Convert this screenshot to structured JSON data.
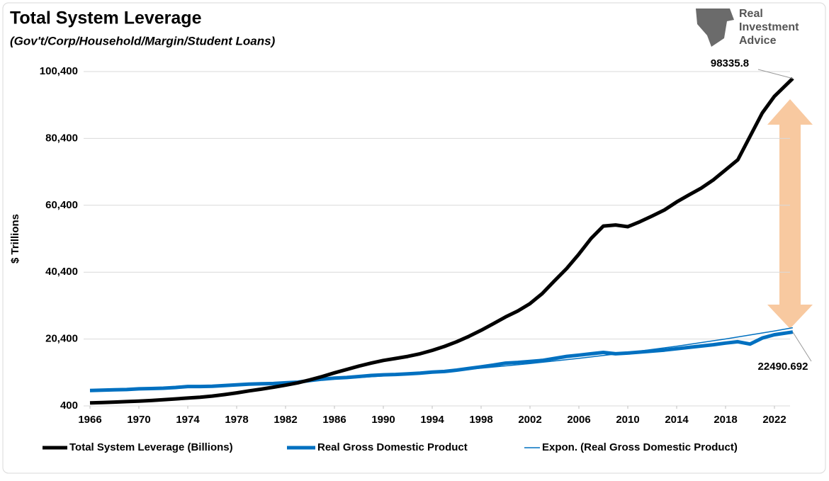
{
  "chart_data": {
    "type": "line",
    "title": "Total System Leverage",
    "subtitle": "(Gov't/Corp/Household/Margin/Student Loans)",
    "y_label": "$ Trillions",
    "logo": [
      "Real",
      "Investment",
      "Advice"
    ],
    "x": [
      1966,
      1967,
      1968,
      1969,
      1970,
      1971,
      1972,
      1973,
      1974,
      1975,
      1976,
      1977,
      1978,
      1979,
      1980,
      1981,
      1982,
      1983,
      1984,
      1985,
      1986,
      1987,
      1988,
      1989,
      1990,
      1991,
      1992,
      1993,
      1994,
      1995,
      1996,
      1997,
      1998,
      1999,
      2000,
      2001,
      2002,
      2003,
      2004,
      2005,
      2006,
      2007,
      2008,
      2009,
      2010,
      2011,
      2012,
      2013,
      2014,
      2015,
      2016,
      2017,
      2018,
      2019,
      2020,
      2021,
      2022,
      2023.5
    ],
    "series": [
      {
        "name": "Total System Leverage (Billions)",
        "color": "#000000",
        "width": 5,
        "values": [
          1300,
          1400,
          1550,
          1700,
          1850,
          2000,
          2250,
          2500,
          2750,
          3000,
          3350,
          3800,
          4300,
          4900,
          5400,
          6000,
          6600,
          7300,
          8200,
          9200,
          10300,
          11300,
          12300,
          13200,
          14000,
          14600,
          15200,
          16000,
          17000,
          18200,
          19600,
          21200,
          23000,
          25000,
          27000,
          28800,
          31000,
          34000,
          37800,
          41500,
          45800,
          50500,
          54200,
          54500,
          54000,
          55500,
          57200,
          59000,
          61400,
          63500,
          65500,
          68000,
          71000,
          74000,
          81000,
          88000,
          93000,
          98335.8
        ]
      },
      {
        "name": "Real Gross Domestic Product",
        "color": "#0070c0",
        "width": 5,
        "values": [
          5000,
          5100,
          5200,
          5300,
          5500,
          5600,
          5700,
          5900,
          6200,
          6200,
          6300,
          6500,
          6700,
          6900,
          7000,
          7100,
          7300,
          7500,
          8000,
          8400,
          8700,
          8900,
          9200,
          9500,
          9700,
          9800,
          10000,
          10200,
          10500,
          10700,
          11100,
          11600,
          12100,
          12600,
          13200,
          13400,
          13700,
          14000,
          14600,
          15200,
          15600,
          16000,
          16400,
          16000,
          16200,
          16500,
          16800,
          17100,
          17500,
          17900,
          18300,
          18700,
          19200,
          19600,
          18900,
          20700,
          21700,
          22490.692
        ]
      },
      {
        "name": "Expon. (Real Gross Domestic Product)",
        "color": "#0070c0",
        "width": 1.5,
        "x": [
          1966,
          1970,
          1974,
          1978,
          1982,
          1986,
          1990,
          1994,
          1998,
          2002,
          2006,
          2010,
          2014,
          2018,
          2022,
          2023.5
        ],
        "values": [
          4800,
          5365,
          5998,
          6704,
          7494,
          8377,
          9364,
          10467,
          11700,
          13079,
          14619,
          16342,
          18267,
          20419,
          22825,
          23800
        ]
      }
    ],
    "xlim": [
      1966,
      2024
    ],
    "xticks": [
      1966,
      1970,
      1974,
      1978,
      1982,
      1986,
      1990,
      1994,
      1998,
      2002,
      2006,
      2010,
      2014,
      2018,
      2022
    ],
    "ylim": [
      400,
      100400
    ],
    "yticks": [
      400,
      {
        "value": 20400,
        "label": "20,400"
      },
      {
        "value": 40400,
        "label": "40,400"
      },
      {
        "value": 60400,
        "label": "60,400"
      },
      {
        "value": 80400,
        "label": "80,400"
      },
      {
        "value": 100400,
        "label": "100,400"
      }
    ],
    "grid": true
  }
}
